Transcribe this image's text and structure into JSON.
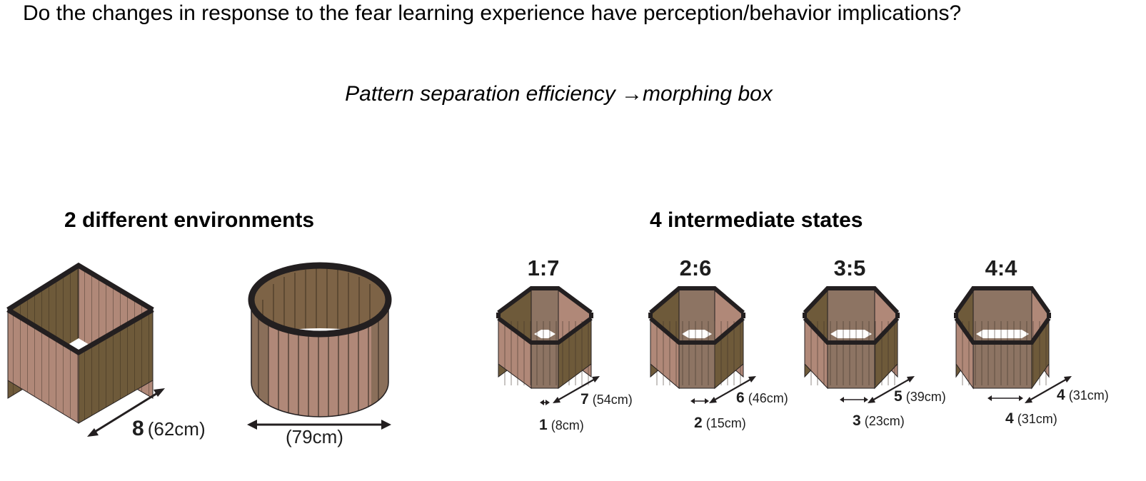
{
  "question": "Do the changes in response to the fear learning experience have perception/behavior implications?",
  "subtitle": {
    "left": "Pattern separation efficiency",
    "arrow": "→",
    "right": "morphing box"
  },
  "environments": {
    "title": "2 different environments",
    "square": {
      "num": "8",
      "size": "(62cm)"
    },
    "circle": {
      "size": "(79cm)"
    }
  },
  "intermediates": {
    "title": "4 intermediate states",
    "states": [
      {
        "ratio": "1:7",
        "long_num": "7",
        "long_size": "(54cm)",
        "short_num": "1",
        "short_size": "(8cm)"
      },
      {
        "ratio": "2:6",
        "long_num": "6",
        "long_size": "(46cm)",
        "short_num": "2",
        "short_size": "(15cm)"
      },
      {
        "ratio": "3:5",
        "long_num": "5",
        "long_size": "(39cm)",
        "short_num": "3",
        "short_size": "(23cm)"
      },
      {
        "ratio": "4:4",
        "long_num": "4",
        "long_size": "(31cm)",
        "short_num": "4",
        "short_size": "(31cm)"
      }
    ]
  },
  "colors": {
    "panel_light": "#b08878",
    "panel_dark": "#6e5a3a",
    "rim": "#231f20"
  }
}
